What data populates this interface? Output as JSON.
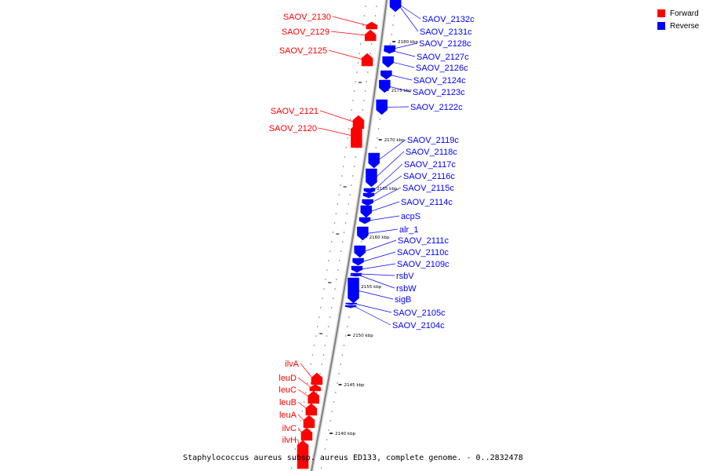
{
  "caption": "Staphylococcus aureus subsp. aureus ED133, complete genome. - 0..2832478",
  "legend": [
    {
      "label": "Forward",
      "color": "#ff0000"
    },
    {
      "label": "Reverse",
      "color": "#0000ff"
    }
  ],
  "colors": {
    "forward": "#ff0000",
    "reverse": "#0000ff",
    "backbone": "#808080"
  },
  "ticks": [
    {
      "label": "2180 kbp",
      "kbp": 2180
    },
    {
      "label": "2175 kbp",
      "kbp": 2175
    },
    {
      "label": "2170 kbp",
      "kbp": 2170
    },
    {
      "label": "2165 kbp",
      "kbp": 2165
    },
    {
      "label": "2160 kbp",
      "kbp": 2160
    },
    {
      "label": "2155 kbp",
      "kbp": 2155
    },
    {
      "label": "2150 kbp",
      "kbp": 2150
    },
    {
      "label": "2145 kbp",
      "kbp": 2145
    },
    {
      "label": "2140 kbp",
      "kbp": 2140
    }
  ],
  "genes": [
    {
      "label": "SAOV_2132c",
      "strand": "reverse"
    },
    {
      "label": "SAOV_2131c",
      "strand": "reverse"
    },
    {
      "label": "SAOV_2130",
      "strand": "forward"
    },
    {
      "label": "SAOV_2129",
      "strand": "forward"
    },
    {
      "label": "SAOV_2128c",
      "strand": "reverse"
    },
    {
      "label": "SAOV_2127c",
      "strand": "reverse"
    },
    {
      "label": "SAOV_2125",
      "strand": "forward"
    },
    {
      "label": "SAOV_2126c",
      "strand": "reverse"
    },
    {
      "label": "SAOV_2124c",
      "strand": "reverse"
    },
    {
      "label": "SAOV_2123c",
      "strand": "reverse"
    },
    {
      "label": "SAOV_2122c",
      "strand": "reverse"
    },
    {
      "label": "SAOV_2121",
      "strand": "forward"
    },
    {
      "label": "SAOV_2120",
      "strand": "forward"
    },
    {
      "label": "SAOV_2119c",
      "strand": "reverse"
    },
    {
      "label": "SAOV_2118c",
      "strand": "reverse"
    },
    {
      "label": "SAOV_2117c",
      "strand": "reverse"
    },
    {
      "label": "SAOV_2116c",
      "strand": "reverse"
    },
    {
      "label": "SAOV_2115c",
      "strand": "reverse"
    },
    {
      "label": "SAOV_2114c",
      "strand": "reverse"
    },
    {
      "label": "acpS",
      "strand": "reverse"
    },
    {
      "label": "alr_1",
      "strand": "reverse"
    },
    {
      "label": "SAOV_2111c",
      "strand": "reverse"
    },
    {
      "label": "SAOV_2110c",
      "strand": "reverse"
    },
    {
      "label": "SAOV_2109c",
      "strand": "reverse"
    },
    {
      "label": "rsbV",
      "strand": "reverse"
    },
    {
      "label": "rsbW",
      "strand": "reverse"
    },
    {
      "label": "sigB",
      "strand": "reverse"
    },
    {
      "label": "SAOV_2105c",
      "strand": "reverse"
    },
    {
      "label": "SAOV_2104c",
      "strand": "reverse"
    },
    {
      "label": "ilvA",
      "strand": "forward"
    },
    {
      "label": "leuD",
      "strand": "forward"
    },
    {
      "label": "leuC",
      "strand": "forward"
    },
    {
      "label": "leuB",
      "strand": "forward"
    },
    {
      "label": "leuA",
      "strand": "forward"
    },
    {
      "label": "ilvC",
      "strand": "forward"
    },
    {
      "label": "ilvH",
      "strand": "forward"
    }
  ]
}
